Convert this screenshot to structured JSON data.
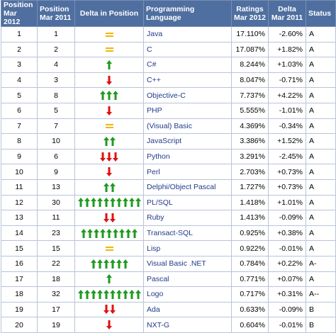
{
  "headers": {
    "pos2012": "Position Mar 2012",
    "pos2011": "Position Mar 2011",
    "delta_pos": "Delta in Position",
    "language": "Programming Language",
    "ratings": "Ratings Mar 2012",
    "delta_rating": "Delta Mar 2011",
    "status": "Status"
  },
  "colors": {
    "up": "#1f9a1f",
    "down": "#e01010",
    "same": "#f2b705",
    "header_bg": "#4f6fa0",
    "lang_text": "#1f3a8a"
  },
  "rows": [
    {
      "pos2012": "1",
      "pos2011": "1",
      "dir": "same",
      "count": 0,
      "language": "Java",
      "ratings": "17.110%",
      "delta": "-2.60%",
      "status": "A"
    },
    {
      "pos2012": "2",
      "pos2011": "2",
      "dir": "same",
      "count": 0,
      "language": "C",
      "ratings": "17.087%",
      "delta": "+1.82%",
      "status": "A"
    },
    {
      "pos2012": "3",
      "pos2011": "4",
      "dir": "up",
      "count": 1,
      "language": "C#",
      "ratings": "8.244%",
      "delta": "+1.03%",
      "status": "A"
    },
    {
      "pos2012": "4",
      "pos2011": "3",
      "dir": "down",
      "count": 1,
      "language": "C++",
      "ratings": "8.047%",
      "delta": "-0.71%",
      "status": "A"
    },
    {
      "pos2012": "5",
      "pos2011": "8",
      "dir": "up",
      "count": 3,
      "language": "Objective-C",
      "ratings": "7.737%",
      "delta": "+4.22%",
      "status": "A"
    },
    {
      "pos2012": "6",
      "pos2011": "5",
      "dir": "down",
      "count": 1,
      "language": "PHP",
      "ratings": "5.555%",
      "delta": "-1.01%",
      "status": "A"
    },
    {
      "pos2012": "7",
      "pos2011": "7",
      "dir": "same",
      "count": 0,
      "language": "(Visual) Basic",
      "ratings": "4.369%",
      "delta": "-0.34%",
      "status": "A"
    },
    {
      "pos2012": "8",
      "pos2011": "10",
      "dir": "up",
      "count": 2,
      "language": "JavaScript",
      "ratings": "3.386%",
      "delta": "+1.52%",
      "status": "A"
    },
    {
      "pos2012": "9",
      "pos2011": "6",
      "dir": "down",
      "count": 3,
      "language": "Python",
      "ratings": "3.291%",
      "delta": "-2.45%",
      "status": "A"
    },
    {
      "pos2012": "10",
      "pos2011": "9",
      "dir": "down",
      "count": 1,
      "language": "Perl",
      "ratings": "2.703%",
      "delta": "+0.73%",
      "status": "A"
    },
    {
      "pos2012": "11",
      "pos2011": "13",
      "dir": "up",
      "count": 2,
      "language": "Delphi/Object Pascal",
      "ratings": "1.727%",
      "delta": "+0.73%",
      "status": "A"
    },
    {
      "pos2012": "12",
      "pos2011": "30",
      "dir": "up",
      "count": 10,
      "language": "PL/SQL",
      "ratings": "1.418%",
      "delta": "+1.01%",
      "status": "A"
    },
    {
      "pos2012": "13",
      "pos2011": "11",
      "dir": "down",
      "count": 2,
      "language": "Ruby",
      "ratings": "1.413%",
      "delta": "-0.09%",
      "status": "A"
    },
    {
      "pos2012": "14",
      "pos2011": "23",
      "dir": "up",
      "count": 9,
      "language": "Transact-SQL",
      "ratings": "0.925%",
      "delta": "+0.38%",
      "status": "A"
    },
    {
      "pos2012": "15",
      "pos2011": "15",
      "dir": "same",
      "count": 0,
      "language": "Lisp",
      "ratings": "0.922%",
      "delta": "-0.01%",
      "status": "A"
    },
    {
      "pos2012": "16",
      "pos2011": "22",
      "dir": "up",
      "count": 6,
      "language": "Visual Basic .NET",
      "ratings": "0.784%",
      "delta": "+0.22%",
      "status": "A-"
    },
    {
      "pos2012": "17",
      "pos2011": "18",
      "dir": "up",
      "count": 1,
      "language": "Pascal",
      "ratings": "0.771%",
      "delta": "+0.07%",
      "status": "A"
    },
    {
      "pos2012": "18",
      "pos2011": "32",
      "dir": "up",
      "count": 10,
      "language": "Logo",
      "ratings": "0.717%",
      "delta": "+0.31%",
      "status": "A--"
    },
    {
      "pos2012": "19",
      "pos2011": "17",
      "dir": "down",
      "count": 2,
      "language": "Ada",
      "ratings": "0.633%",
      "delta": "-0.09%",
      "status": "B"
    },
    {
      "pos2012": "20",
      "pos2011": "19",
      "dir": "down",
      "count": 1,
      "language": "NXT-G",
      "ratings": "0.604%",
      "delta": "-0.01%",
      "status": "B"
    }
  ]
}
